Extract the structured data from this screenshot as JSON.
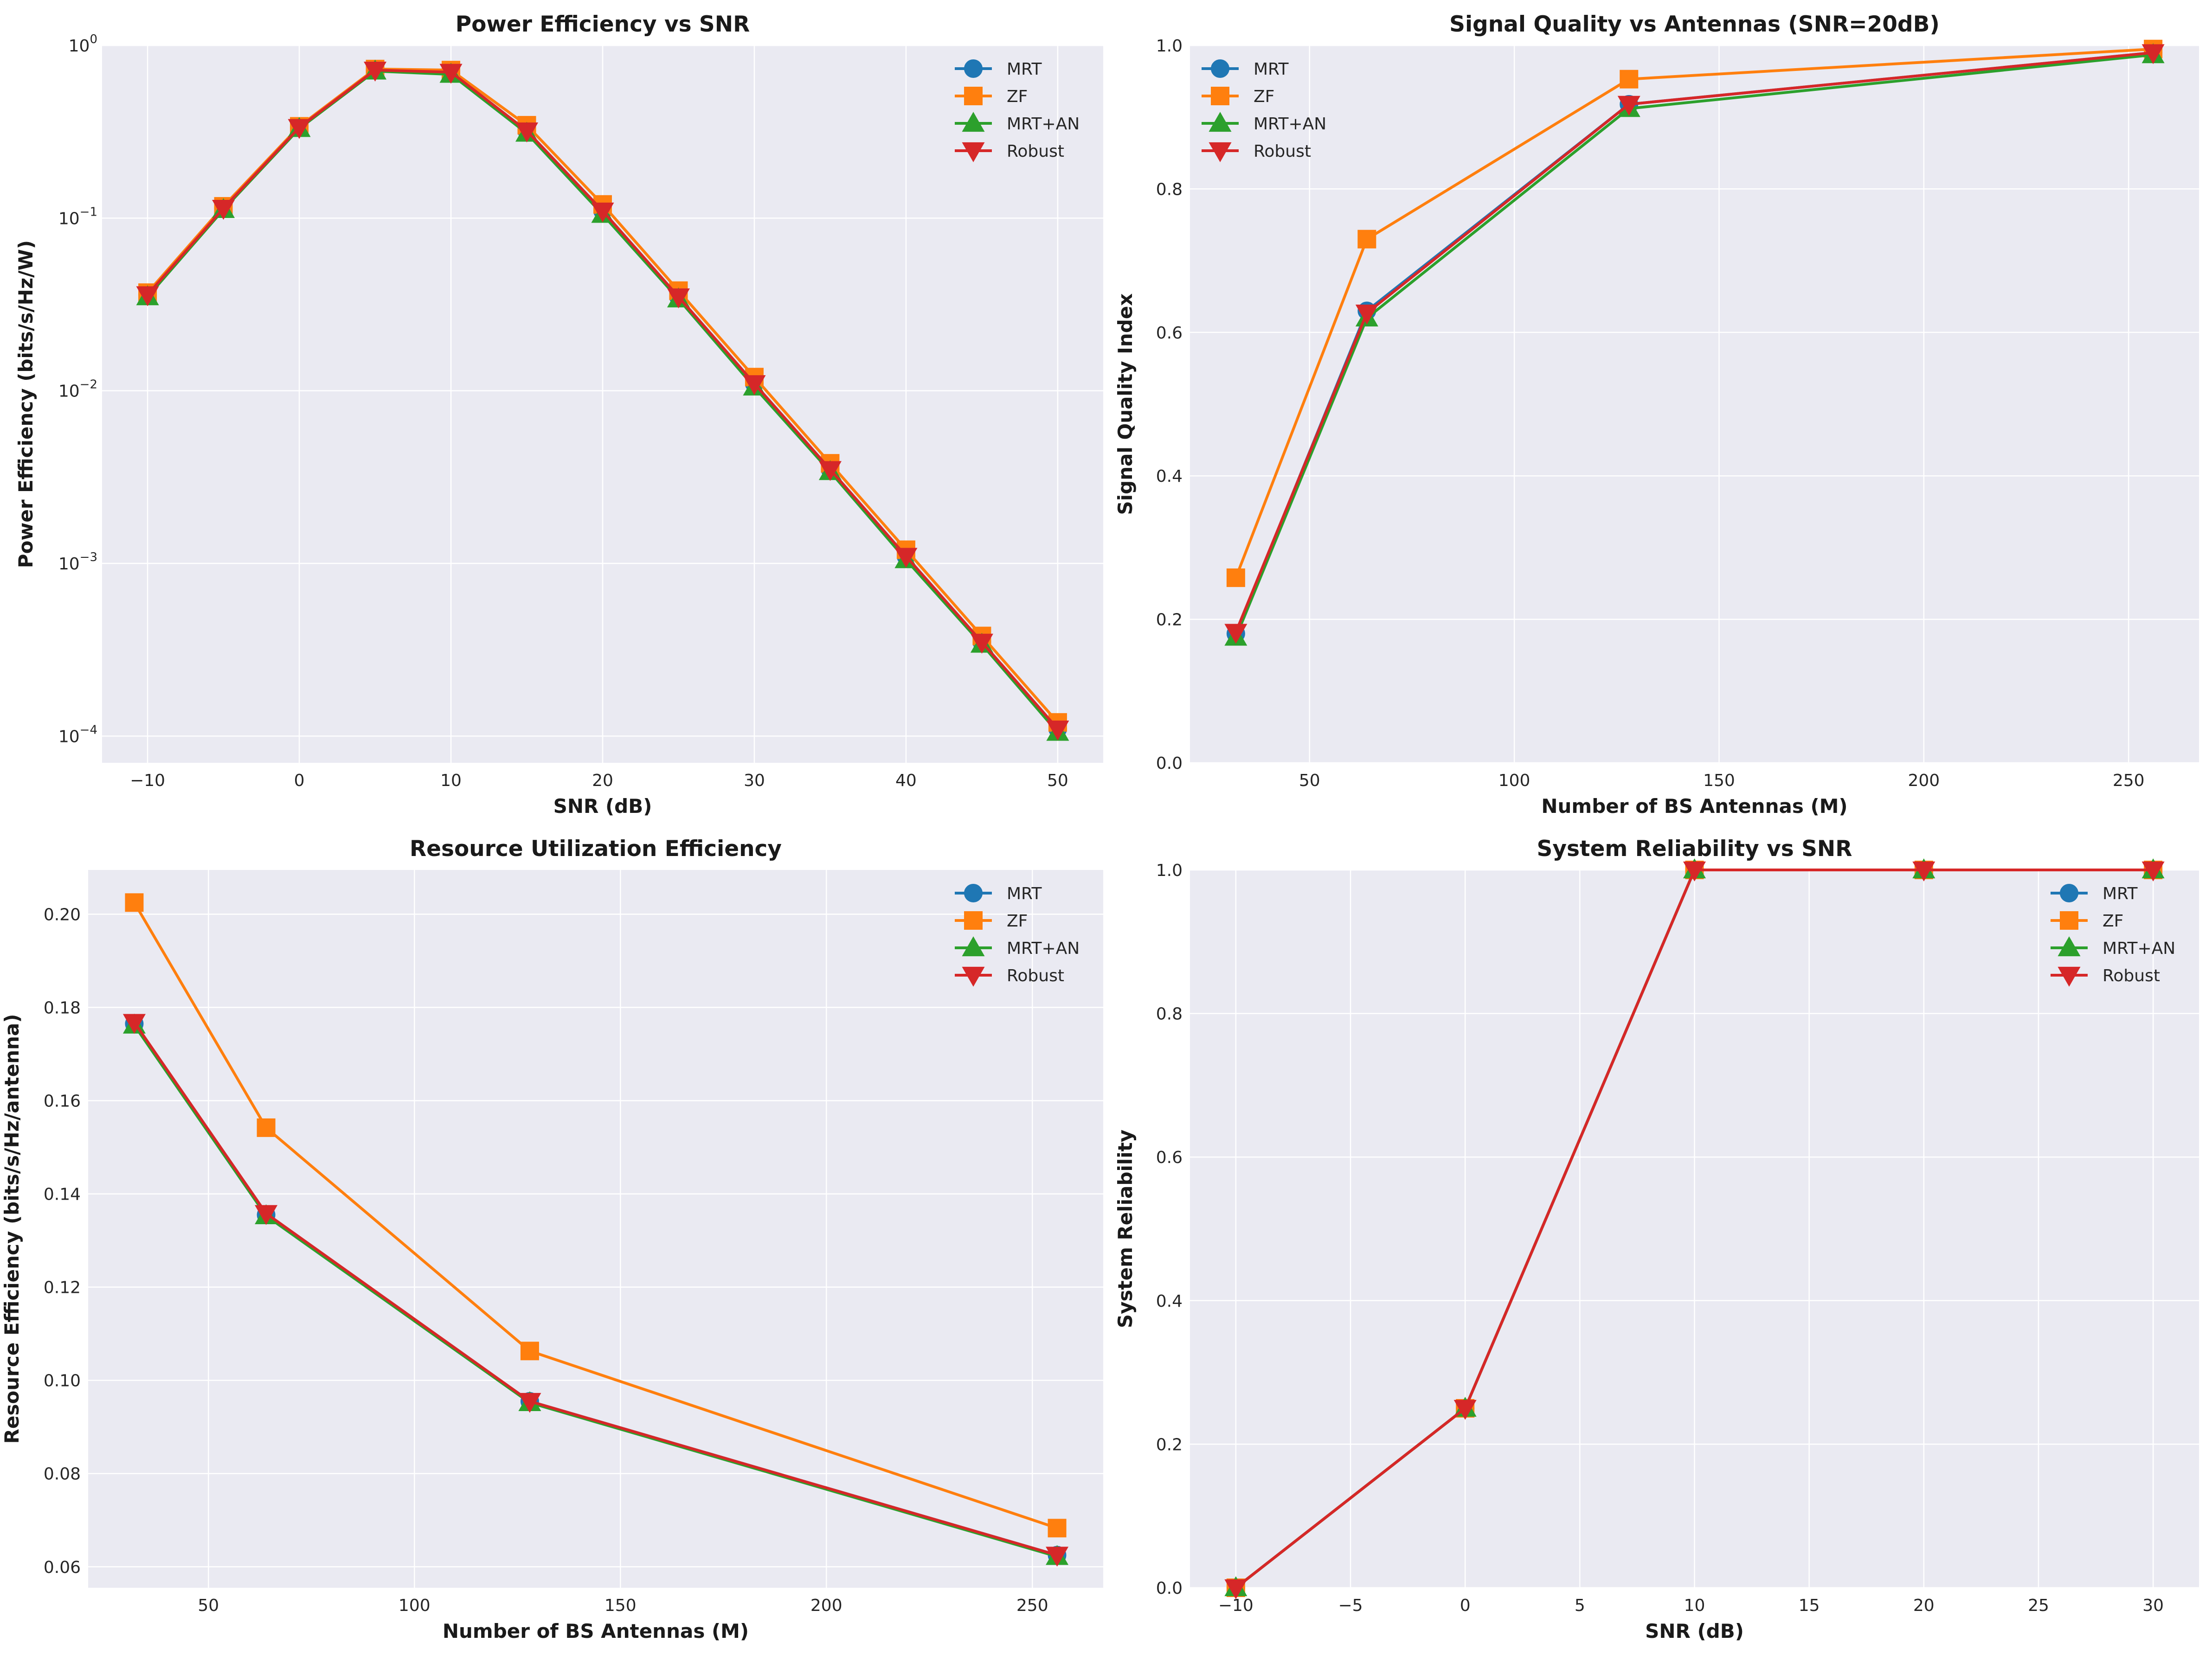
{
  "chart_data": [
    {
      "type": "line",
      "title": "Power Efficiency vs SNR",
      "xlabel": "SNR (dB)",
      "ylabel": "Power Efficiency (bits/s/Hz/W)",
      "yscale": "log",
      "xlim": [
        -13,
        53
      ],
      "ylim": [
        7e-05,
        1.0
      ],
      "xticks": [
        -10,
        0,
        10,
        20,
        30,
        40,
        50
      ],
      "xtick_labels": [
        "−10",
        "0",
        "10",
        "20",
        "30",
        "40",
        "50"
      ],
      "yticks": [
        0.0001,
        0.001,
        0.01,
        0.1,
        1
      ],
      "ytick_labels": [
        "10<sup>−4</sup>",
        "10<sup>−3</sup>",
        "10<sup>−2</sup>",
        "10<sup>−1</sup>",
        "10<sup>0</sup>"
      ],
      "ytick_base": [
        "10",
        "10",
        "10",
        "10",
        "10"
      ],
      "ytick_exp": [
        "−4",
        "−3",
        "−2",
        "−1",
        "0"
      ],
      "grid": true,
      "legend": "top-right",
      "x": [
        -10,
        -5,
        0,
        5,
        10,
        15,
        20,
        25,
        30,
        35,
        40,
        45,
        50
      ],
      "series": [
        {
          "name": "MRT",
          "color": "#1f77b4",
          "marker": "circle",
          "values": [
            0.036,
            0.114,
            0.335,
            0.72,
            0.7,
            0.32,
            0.11,
            0.035,
            0.011,
            0.0035,
            0.0011,
            0.00035,
            0.00011
          ]
        },
        {
          "name": "ZF",
          "color": "#ff7f0e",
          "marker": "square",
          "values": [
            0.037,
            0.117,
            0.34,
            0.73,
            0.72,
            0.345,
            0.12,
            0.038,
            0.012,
            0.0038,
            0.0012,
            0.00038,
            0.00012
          ]
        },
        {
          "name": "MRT+AN",
          "color": "#2ca02c",
          "marker": "triangle-up",
          "values": [
            0.035,
            0.112,
            0.33,
            0.71,
            0.68,
            0.31,
            0.105,
            0.034,
            0.0105,
            0.0034,
            0.00105,
            0.00034,
            0.000105
          ]
        },
        {
          "name": "Robust",
          "color": "#d62728",
          "marker": "triangle-down",
          "values": [
            0.036,
            0.114,
            0.335,
            0.72,
            0.7,
            0.32,
            0.11,
            0.035,
            0.011,
            0.0035,
            0.0011,
            0.00035,
            0.00011
          ]
        }
      ]
    },
    {
      "type": "line",
      "title": "Signal Quality vs Antennas (SNR=20dB)",
      "xlabel": "Number of BS Antennas (M)",
      "ylabel": "Signal Quality Index",
      "xlim": [
        20.8,
        267.2
      ],
      "ylim": [
        0,
        1.0
      ],
      "xticks": [
        50,
        100,
        150,
        200,
        250
      ],
      "xtick_labels": [
        "50",
        "100",
        "150",
        "200",
        "250"
      ],
      "yticks": [
        0,
        0.2,
        0.4,
        0.6,
        0.8,
        1.0
      ],
      "ytick_labels": [
        "0.0",
        "0.2",
        "0.4",
        "0.6",
        "0.8",
        "1.0"
      ],
      "grid": true,
      "legend": "top-left",
      "x": [
        32,
        64,
        128,
        256
      ],
      "series": [
        {
          "name": "MRT",
          "color": "#1f77b4",
          "marker": "circle",
          "values": [
            0.18,
            0.63,
            0.918,
            0.99
          ]
        },
        {
          "name": "ZF",
          "color": "#ff7f0e",
          "marker": "square",
          "values": [
            0.258,
            0.73,
            0.953,
            0.995
          ]
        },
        {
          "name": "MRT+AN",
          "color": "#2ca02c",
          "marker": "triangle-up",
          "values": [
            0.175,
            0.62,
            0.912,
            0.987
          ]
        },
        {
          "name": "Robust",
          "color": "#d62728",
          "marker": "triangle-down",
          "values": [
            0.182,
            0.627,
            0.918,
            0.99
          ]
        }
      ]
    },
    {
      "type": "line",
      "title": "Resource Utilization Efficiency",
      "xlabel": "Number of BS Antennas (M)",
      "ylabel": "Resource Efficiency (bits/s/Hz/antenna)",
      "xlim": [
        20.8,
        267.2
      ],
      "ylim": [
        0.0555,
        0.2095
      ],
      "xticks": [
        50,
        100,
        150,
        200,
        250
      ],
      "xtick_labels": [
        "50",
        "100",
        "150",
        "200",
        "250"
      ],
      "yticks": [
        0.06,
        0.08,
        0.1,
        0.12,
        0.14,
        0.16,
        0.18,
        0.2
      ],
      "ytick_labels": [
        "0.06",
        "0.08",
        "0.10",
        "0.12",
        "0.14",
        "0.16",
        "0.18",
        "0.20"
      ],
      "grid": true,
      "legend": "top-right",
      "x": [
        32,
        64,
        128,
        256
      ],
      "series": [
        {
          "name": "MRT",
          "color": "#1f77b4",
          "marker": "circle",
          "values": [
            0.1765,
            0.1355,
            0.0955,
            0.0625
          ]
        },
        {
          "name": "ZF",
          "color": "#ff7f0e",
          "marker": "square",
          "values": [
            0.2025,
            0.1542,
            0.1063,
            0.0683
          ]
        },
        {
          "name": "MRT+AN",
          "color": "#2ca02c",
          "marker": "triangle-up",
          "values": [
            0.1762,
            0.1353,
            0.0952,
            0.0622
          ]
        },
        {
          "name": "Robust",
          "color": "#d62728",
          "marker": "triangle-down",
          "values": [
            0.1768,
            0.1358,
            0.0955,
            0.0625
          ]
        }
      ]
    },
    {
      "type": "line",
      "title": "System Reliability vs SNR",
      "xlabel": "SNR (dB)",
      "ylabel": "System Reliability",
      "xlim": [
        -12,
        32
      ],
      "ylim": [
        0,
        1.0
      ],
      "xticks": [
        -10,
        -5,
        0,
        5,
        10,
        15,
        20,
        25,
        30
      ],
      "xtick_labels": [
        "−10",
        "−5",
        "0",
        "5",
        "10",
        "15",
        "20",
        "25",
        "30"
      ],
      "yticks": [
        0,
        0.2,
        0.4,
        0.6,
        0.8,
        1.0
      ],
      "ytick_labels": [
        "0.0",
        "0.2",
        "0.4",
        "0.6",
        "0.8",
        "1.0"
      ],
      "grid": true,
      "legend": "top-right",
      "x": [
        -10,
        0,
        10,
        20,
        30
      ],
      "series": [
        {
          "name": "MRT",
          "color": "#1f77b4",
          "marker": "circle",
          "values": [
            0.0,
            0.25,
            1.0,
            1.0,
            1.0
          ]
        },
        {
          "name": "ZF",
          "color": "#ff7f0e",
          "marker": "square",
          "values": [
            0.0,
            0.25,
            1.0,
            1.0,
            1.0
          ]
        },
        {
          "name": "MRT+AN",
          "color": "#2ca02c",
          "marker": "triangle-up",
          "values": [
            0.0,
            0.25,
            1.0,
            1.0,
            1.0
          ]
        },
        {
          "name": "Robust",
          "color": "#d62728",
          "marker": "triangle-down",
          "values": [
            0.0,
            0.25,
            1.0,
            1.0,
            1.0
          ]
        }
      ]
    }
  ]
}
